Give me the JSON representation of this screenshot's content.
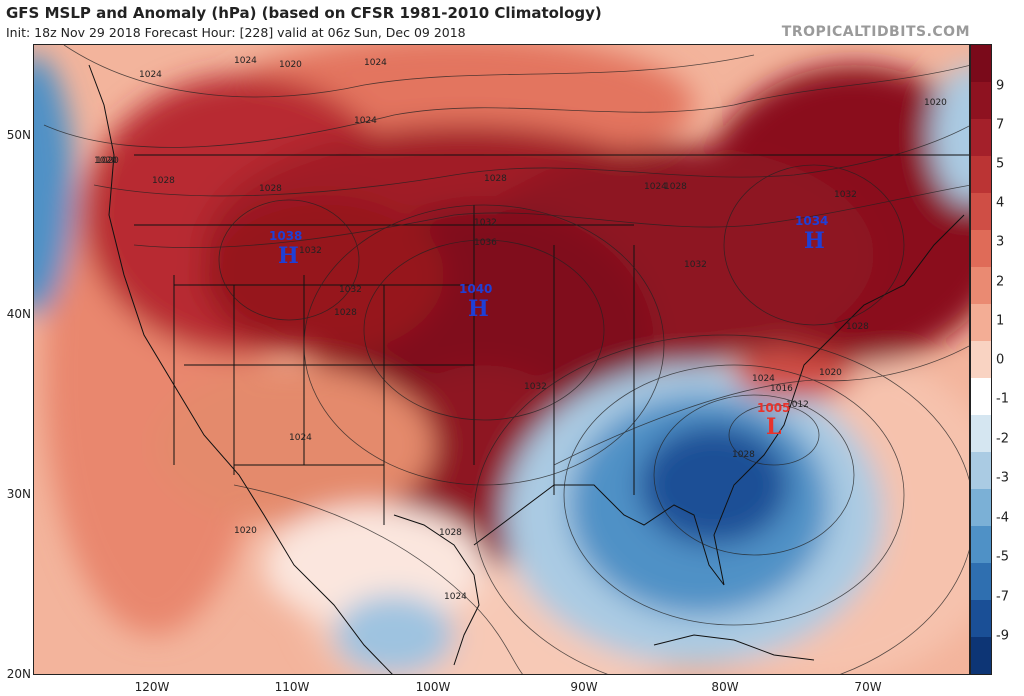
{
  "header": {
    "title": "GFS MSLP and Anomaly (hPa) (based on CFSR 1981-2010 Climatology)",
    "subtitle": "Init: 18z Nov 29 2018   Forecast Hour: [228]   valid at 06z Sun, Dec 09 2018",
    "brand": "TROPICALTIDBITS.COM"
  },
  "axes": {
    "lat_labels": [
      "50N",
      "40N",
      "30N",
      "20N"
    ],
    "lon_labels": [
      "120W",
      "110W",
      "100W",
      "90W",
      "80W",
      "70W"
    ]
  },
  "colorbar": {
    "labels": [
      "9",
      "7",
      "5",
      "4",
      "3",
      "2",
      "1",
      "0",
      "-1",
      "-2",
      "-3",
      "-4",
      "-5",
      "-7",
      "-9"
    ],
    "colors": [
      "#7a0a1a",
      "#8e1220",
      "#a4202a",
      "#bb3434",
      "#cf4e45",
      "#df6b58",
      "#ea8a72",
      "#f3ad95",
      "#f9d3c2",
      "#ffffff",
      "#d5e6f1",
      "#aacbe3",
      "#7bb0d6",
      "#4f91c6",
      "#2f6fb0",
      "#1a4f96",
      "#0d3575"
    ]
  },
  "pressure_centers": [
    {
      "type": "H",
      "value": "1038"
    },
    {
      "type": "H",
      "value": "1040"
    },
    {
      "type": "H",
      "value": "1034"
    },
    {
      "type": "L",
      "value": "1005"
    }
  ],
  "isobar_labels": [
    "1024",
    "1020",
    "1020",
    "1024",
    "1028",
    "1028",
    "1032",
    "1032",
    "1036",
    "1032",
    "1028",
    "1024",
    "1028",
    "1032",
    "1032",
    "1024",
    "1020",
    "1024",
    "1028",
    "1024",
    "1032",
    "1028",
    "1024",
    "1028",
    "1016",
    "1012",
    "1020",
    "1020",
    "1024",
    "1028",
    "1020"
  ]
}
